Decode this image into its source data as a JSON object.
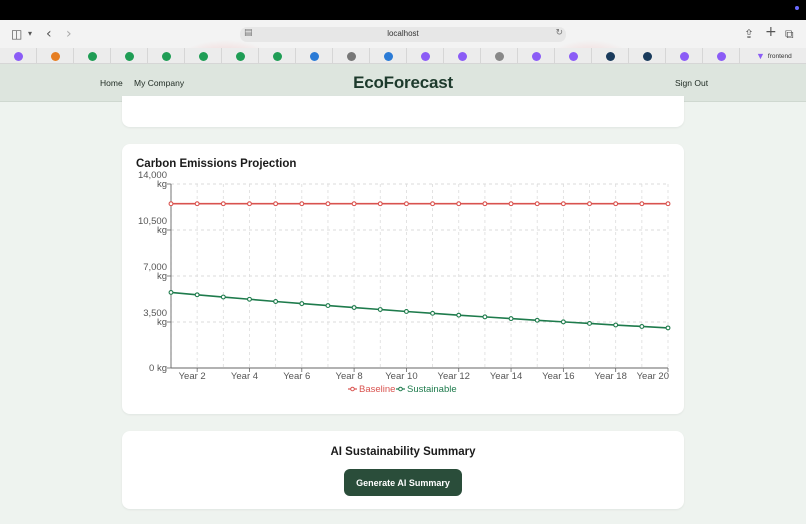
{
  "browser": {
    "url": "localhost",
    "bookmark_last_label": "frontend",
    "icons": {
      "sidebar": "sidebar-icon",
      "chevron": "chevron-down-icon",
      "back": "back-icon",
      "forward": "forward-icon",
      "share": "share-icon",
      "new_tab": "plus-icon",
      "tabs": "tabs-icon",
      "reload": "reload-icon"
    },
    "bookmark_colors": [
      "#8b5cf6",
      "#e67e22",
      "#1f9d55",
      "#1f9d55",
      "#1f9d55",
      "#1f9d55",
      "#1f9d55",
      "#1f9d55",
      "#2b7bd6",
      "#777777",
      "#2b7bd6",
      "#8b5cf6",
      "#8b5cf6",
      "#888888",
      "#8b5cf6",
      "#8b5cf6",
      "#1a3b5c",
      "#1a3b5c",
      "#8b5cf6",
      "#8b5cf6"
    ]
  },
  "nav": {
    "home": "Home",
    "company": "My Company",
    "brand": "EcoForecast",
    "sign_out": "Sign Out"
  },
  "chart_card": {
    "title": "Carbon Emissions Projection"
  },
  "chart_data": {
    "type": "line",
    "title": "Carbon Emissions Projection",
    "x": [
      "Year 1",
      "Year 2",
      "Year 3",
      "Year 4",
      "Year 5",
      "Year 6",
      "Year 7",
      "Year 8",
      "Year 9",
      "Year 10",
      "Year 11",
      "Year 12",
      "Year 13",
      "Year 14",
      "Year 15",
      "Year 16",
      "Year 17",
      "Year 18",
      "Year 19",
      "Year 20"
    ],
    "x_tick_labels": [
      "Year 2",
      "Year 4",
      "Year 6",
      "Year 8",
      "Year 10",
      "Year 12",
      "Year 14",
      "Year 16",
      "Year 18",
      "Year 20"
    ],
    "y_ticks": [
      0,
      3500,
      7000,
      10500,
      14000
    ],
    "y_tick_labels": [
      [
        "0 kg"
      ],
      [
        "3,500",
        "kg"
      ],
      [
        "7,000",
        "kg"
      ],
      [
        "10,500",
        "kg"
      ],
      [
        "14,000",
        "kg"
      ]
    ],
    "ylim": [
      0,
      14000
    ],
    "grid": true,
    "legend_position": "bottom",
    "series": [
      {
        "name": "Baseline",
        "color": "#d9534f",
        "values": [
          12500,
          12500,
          12500,
          12500,
          12500,
          12500,
          12500,
          12500,
          12500,
          12500,
          12500,
          12500,
          12500,
          12500,
          12500,
          12500,
          12500,
          12500,
          12500,
          12500
        ]
      },
      {
        "name": "Sustainable",
        "color": "#1e7b4c",
        "values": [
          5750,
          5570,
          5400,
          5230,
          5060,
          4900,
          4750,
          4600,
          4450,
          4300,
          4160,
          4020,
          3890,
          3760,
          3630,
          3510,
          3390,
          3270,
          3160,
          3050
        ]
      }
    ]
  },
  "ai_card": {
    "title": "AI Sustainability Summary",
    "button_label": "Generate AI Summary"
  }
}
